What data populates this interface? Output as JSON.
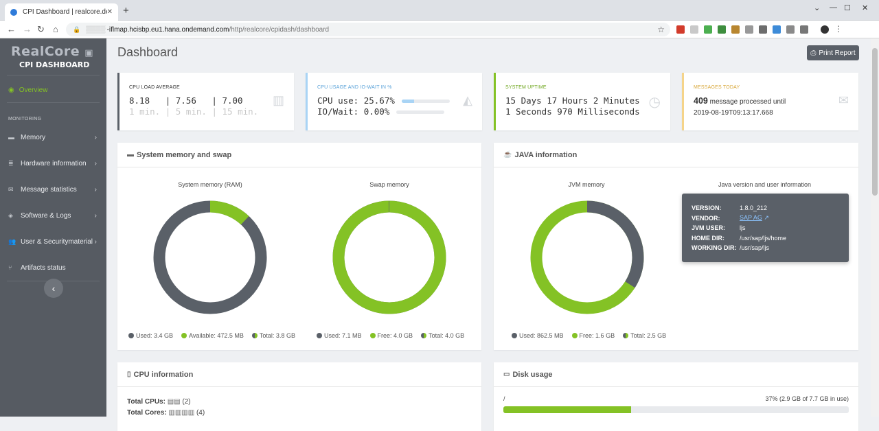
{
  "browser": {
    "tab_title": "CPI Dashboard | realcore.de",
    "url_host": "-iflmap.hcisbp.eu1.hana.ondemand.com",
    "url_path": "/http/realcore/cpidash/dashboard"
  },
  "sidebar": {
    "logo_top": "RealCore",
    "logo_bottom": "CPI DASHBOARD",
    "overview": "Overview",
    "section": "MONITORING",
    "items": [
      {
        "label": "Memory",
        "icon": "memory-icon"
      },
      {
        "label": "Hardware information",
        "icon": "database-icon"
      },
      {
        "label": "Message statistics",
        "icon": "envelope-icon"
      },
      {
        "label": "Software & Logs",
        "icon": "cubes-icon"
      },
      {
        "label": "User & Securitymaterial",
        "icon": "users-icon"
      },
      {
        "label": "Artifacts status",
        "icon": "code-branch-icon"
      }
    ]
  },
  "page": {
    "title": "Dashboard",
    "print_label": "Print Report"
  },
  "stats": {
    "cpu_load": {
      "title": "CPU LOAD AVERAGE",
      "v1": "8.18",
      "v5": "| 7.56",
      "v15": "| 7.00",
      "l1": "1 min.",
      "l5": "| 5 min.",
      "l15": "| 15 min."
    },
    "cpu_usage": {
      "title": "CPU USAGE AND IO-WAIT IN %",
      "cpu": "CPU use: 25.67%",
      "io": "IO/Wait:  0.00%",
      "cpu_fraction": 0.2567,
      "io_fraction": 0.0
    },
    "uptime": {
      "title": "SYSTEM UPTIME",
      "line1": "15 Days 17 Hours 2 Minutes",
      "line2": "1 Seconds 970 Milliseconds"
    },
    "messages": {
      "title": "MESSAGES TODAY",
      "count": "409",
      "text": "message processed until",
      "date": "2019-08-19T09:13:17.668"
    }
  },
  "memory_panel": {
    "title": "System memory and swap",
    "ram": {
      "title": "System memory (RAM)",
      "used_label": "Used: 3.4 GB",
      "avail_label": "Available: 472.5 MB",
      "total_label": "Total: 3.8 GB",
      "free_fraction": 0.12
    },
    "swap": {
      "title": "Swap memory",
      "used_label": "Used: 7.1 MB",
      "free_label": "Free: 4.0 GB",
      "total_label": "Total: 4.0 GB",
      "free_fraction": 0.998
    }
  },
  "java_panel": {
    "title": "JAVA information",
    "jvm": {
      "title": "JVM memory",
      "used_label": "Used: 862.5 MB",
      "free_label": "Free: 1.6 GB",
      "total_label": "Total: 2.5 GB",
      "used_fraction": 0.34
    },
    "info_title": "Java version and user information",
    "version_k": "VERSION:",
    "version_v": "1.8.0_212",
    "vendor_k": "VENDOR:",
    "vendor_v": "SAP AG",
    "user_k": "JVM USER:",
    "user_v": "ljs",
    "home_k": "HOME DIR:",
    "home_v": "/usr/sap/ljs/home",
    "work_k": "WORKING DIR:",
    "work_v": "/usr/sap/ljs"
  },
  "cpu_panel": {
    "title": "CPU information",
    "total_cpus": "Total CPUs:",
    "cpus_count": "(2)",
    "total_cores": "Total Cores:",
    "cores_count": "(4)"
  },
  "disk_panel": {
    "title": "Disk usage",
    "mount": "/",
    "usage": "37% (2.9 GB of 7.7 GB in use)",
    "fraction": 0.37
  },
  "colors": {
    "accent": "#84c225",
    "dark": "#5a6068",
    "sidebar": "#565b62"
  }
}
